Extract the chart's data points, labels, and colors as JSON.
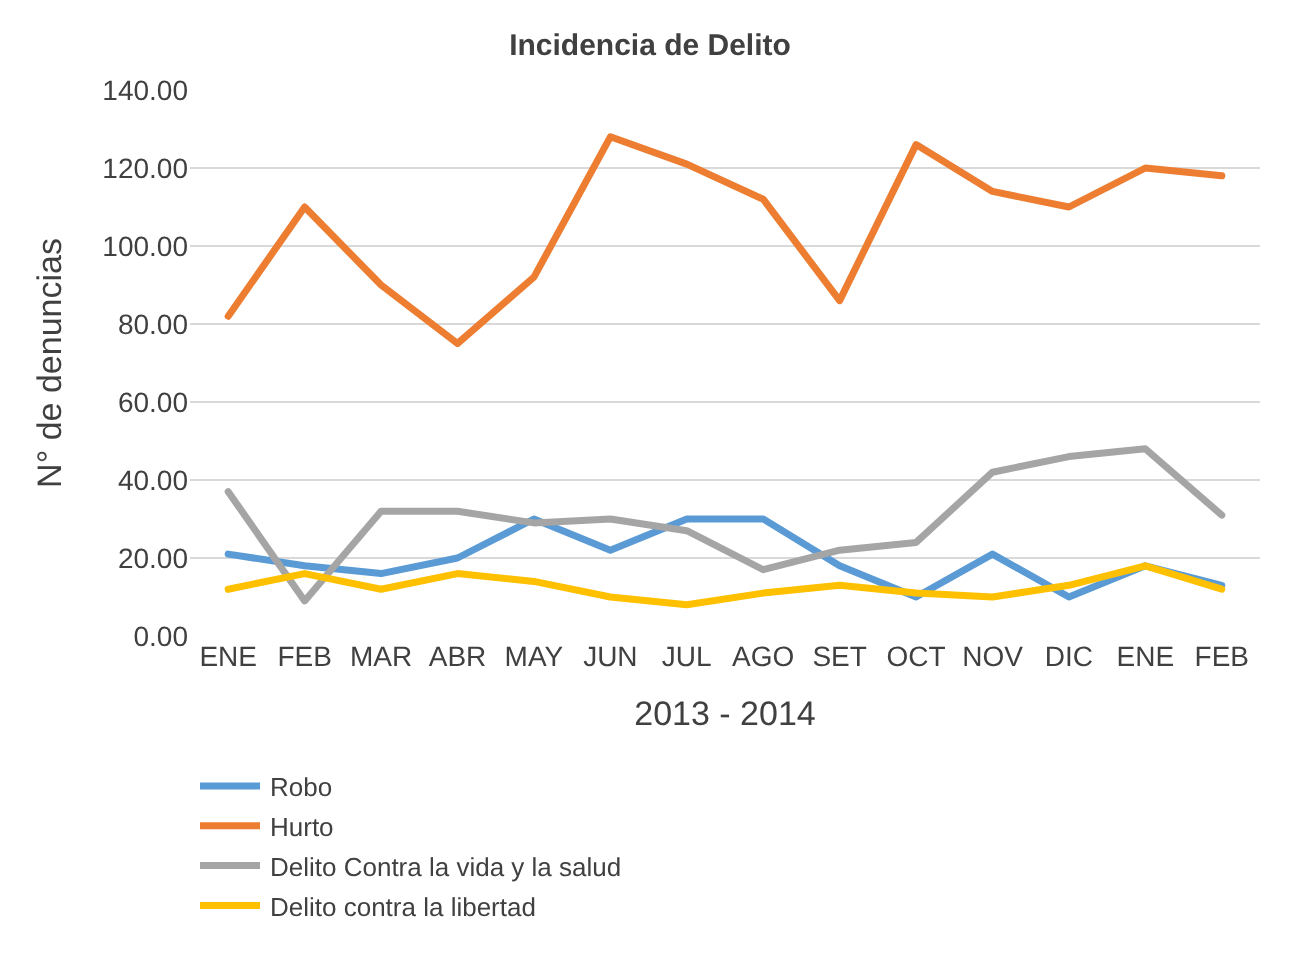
{
  "chart_data": {
    "type": "line",
    "title": "Incidencia de Delito",
    "xlabel": "2013 - 2014",
    "ylabel": "N° de denuncias",
    "categories": [
      "ENE",
      "FEB",
      "MAR",
      "ABR",
      "MAY",
      "JUN",
      "JUL",
      "AGO",
      "SET",
      "OCT",
      "NOV",
      "DIC",
      "ENE",
      "FEB"
    ],
    "series": [
      {
        "name": "Robo",
        "color": "#5b9bd5",
        "values": [
          21,
          18,
          16,
          20,
          30,
          22,
          30,
          30,
          18,
          10,
          21,
          10,
          18,
          13
        ]
      },
      {
        "name": "Hurto",
        "color": "#ed7d31",
        "values": [
          82,
          110,
          90,
          75,
          92,
          128,
          121,
          112,
          86,
          126,
          114,
          110,
          120,
          118
        ]
      },
      {
        "name": "Delito Contra la vida y la salud",
        "color": "#a5a5a5",
        "values": [
          37,
          9,
          32,
          32,
          29,
          30,
          27,
          17,
          22,
          24,
          42,
          46,
          48,
          31
        ]
      },
      {
        "name": "Delito contra la libertad",
        "color": "#ffc000",
        "values": [
          12,
          16,
          12,
          16,
          14,
          10,
          8,
          11,
          13,
          11,
          10,
          13,
          18,
          12
        ]
      }
    ],
    "ylim": [
      0,
      140
    ],
    "yticks": [
      {
        "value": 0,
        "label": "0.00"
      },
      {
        "value": 20,
        "label": "20.00"
      },
      {
        "value": 40,
        "label": "40.00"
      },
      {
        "value": 60,
        "label": "60.00"
      },
      {
        "value": 80,
        "label": "80.00"
      },
      {
        "value": 100,
        "label": "100.00"
      },
      {
        "value": 120,
        "label": "120.00"
      },
      {
        "value": 140,
        "label": "140.00"
      }
    ],
    "grid": "y",
    "legend": "bottom",
    "marker": "none",
    "line_style": "solid"
  }
}
